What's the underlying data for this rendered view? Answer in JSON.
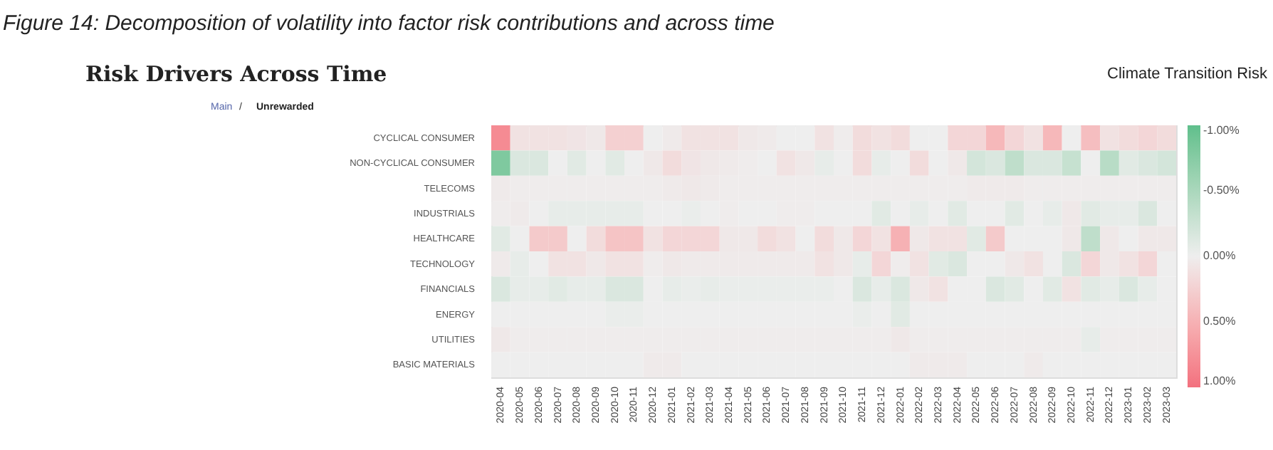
{
  "chart_data": {
    "type": "heatmap",
    "title": "Figure 14: Decomposition of volatility into factor risk contributions and across time",
    "subtitle": "Risk Drivers Across Time",
    "annotations": [
      "Main",
      "/",
      "Unrewarded",
      "Climate Transition Risk"
    ],
    "categories": [
      "2020-04",
      "2020-05",
      "2020-06",
      "2020-07",
      "2020-08",
      "2020-09",
      "2020-10",
      "2020-11",
      "2020-12",
      "2021-01",
      "2021-02",
      "2021-03",
      "2021-04",
      "2021-05",
      "2021-06",
      "2021-07",
      "2021-08",
      "2021-09",
      "2021-10",
      "2021-11",
      "2021-12",
      "2022-01",
      "2022-02",
      "2022-03",
      "2022-04",
      "2022-05",
      "2022-06",
      "2022-07",
      "2022-08",
      "2022-09",
      "2022-10",
      "2022-11",
      "2022-12",
      "2023-01",
      "2023-02",
      "2023-03"
    ],
    "y_categories": [
      "CYCLICAL CONSUMER",
      "NON-CYCLICAL CONSUMER",
      "TELECOMS",
      "INDUSTRIALS",
      "HEALTHCARE",
      "TECHNOLOGY",
      "FINANCIALS",
      "ENERGY",
      "UTILITIES",
      "BASIC MATERIALS"
    ],
    "cells": [
      [
        0.8,
        0.1,
        0.1,
        0.1,
        0.08,
        0.05,
        0.25,
        0.25,
        0,
        0.03,
        0.1,
        0.1,
        0.1,
        0.05,
        0.03,
        0,
        0,
        0.1,
        0.02,
        0.15,
        0.1,
        0.15,
        0,
        0,
        0.2,
        0.2,
        0.45,
        0.2,
        0.1,
        0.45,
        0,
        0.4,
        0.1,
        0.15,
        0.2,
        0.15
      ],
      [
        -0.8,
        -0.15,
        -0.15,
        0,
        -0.1,
        0,
        -0.1,
        0,
        0.05,
        0.15,
        0.08,
        0.05,
        0.03,
        0.02,
        0,
        0.1,
        0.05,
        -0.05,
        0,
        0.15,
        -0.05,
        0,
        0.15,
        0,
        0.05,
        -0.2,
        -0.15,
        -0.35,
        -0.15,
        -0.15,
        -0.3,
        0,
        -0.4,
        -0.1,
        -0.15,
        -0.2
      ],
      [
        0.03,
        0.02,
        0.02,
        0.02,
        0.02,
        0.02,
        0.02,
        0.02,
        0.02,
        0.03,
        0.05,
        0.03,
        0.02,
        0.02,
        0.02,
        0.02,
        0.02,
        0.02,
        0.02,
        0.02,
        0.02,
        0.02,
        0.02,
        0.02,
        0.02,
        0.03,
        0.03,
        0.03,
        0.02,
        0.02,
        0.02,
        0.02,
        0.02,
        0.02,
        0.02,
        0.02
      ],
      [
        0.02,
        0.03,
        0,
        -0.05,
        -0.05,
        -0.05,
        -0.05,
        -0.05,
        0,
        0,
        -0.03,
        0,
        0.02,
        0,
        0,
        0.02,
        0.02,
        0,
        0,
        0,
        -0.1,
        0,
        -0.05,
        0,
        -0.1,
        0,
        0,
        -0.1,
        0,
        -0.05,
        0.05,
        -0.1,
        -0.05,
        -0.05,
        -0.15,
        0
      ],
      [
        -0.1,
        0,
        0.3,
        0.3,
        0,
        0.15,
        0.35,
        0.35,
        0.1,
        0.2,
        0.2,
        0.2,
        0.05,
        0.05,
        0.15,
        0.1,
        0,
        0.15,
        0.05,
        0.2,
        0.1,
        0.5,
        0.05,
        0.1,
        0.1,
        -0.1,
        0.3,
        0,
        0,
        0,
        0.05,
        -0.35,
        0.05,
        0,
        0.05,
        0.05
      ],
      [
        0.03,
        -0.05,
        0,
        0.1,
        0.1,
        0.05,
        0.1,
        0.1,
        0.02,
        0.05,
        0.03,
        0.03,
        0.03,
        0.03,
        0.03,
        0.03,
        0.03,
        0.1,
        0.05,
        -0.05,
        0.2,
        0.02,
        0.1,
        -0.1,
        -0.15,
        0,
        0,
        0.05,
        0.1,
        0,
        -0.15,
        0.2,
        0.05,
        0.1,
        0.2,
        0
      ],
      [
        -0.15,
        -0.05,
        -0.05,
        -0.1,
        -0.05,
        -0.05,
        -0.15,
        -0.15,
        0,
        -0.05,
        -0.03,
        -0.05,
        -0.03,
        -0.03,
        -0.03,
        -0.03,
        -0.03,
        -0.03,
        0,
        -0.15,
        -0.05,
        -0.15,
        0.05,
        0.1,
        0,
        0,
        -0.15,
        -0.1,
        0,
        -0.1,
        0.1,
        -0.1,
        -0.05,
        -0.15,
        -0.05,
        0
      ],
      [
        0,
        0,
        0,
        0,
        0,
        0,
        -0.03,
        -0.03,
        0,
        0,
        0,
        0,
        0,
        0,
        0,
        0,
        0,
        0,
        0,
        -0.03,
        0,
        -0.1,
        0,
        0,
        0,
        0,
        0,
        0,
        0,
        0,
        0,
        0,
        0,
        0,
        0,
        0
      ],
      [
        0.05,
        0.02,
        0.02,
        0.02,
        0.02,
        0.02,
        0.02,
        0.02,
        0.02,
        0.02,
        0.02,
        0.02,
        0.02,
        0.02,
        0.02,
        0.02,
        0.02,
        0.02,
        0.02,
        0.02,
        0.02,
        0.05,
        0.02,
        0.02,
        0.02,
        0.02,
        0.02,
        0.02,
        0.02,
        0.02,
        0.02,
        -0.05,
        0.02,
        0.02,
        0.02,
        0.02
      ],
      [
        0,
        0,
        0,
        0,
        0,
        0,
        0,
        0,
        0.03,
        0.03,
        0,
        0,
        0,
        0,
        0,
        0,
        0,
        0,
        0,
        0,
        0,
        0,
        0.03,
        0.03,
        0.03,
        0,
        0,
        0,
        0.03,
        0,
        0,
        0,
        0,
        0,
        0,
        0
      ]
    ],
    "clim": [
      -1.0,
      1.0
    ],
    "cticks": [
      {
        "value": -1.0,
        "label": "-1.00%"
      },
      {
        "value": -0.5,
        "label": "-0.50%"
      },
      {
        "value": 0.0,
        "label": "0.00%"
      },
      {
        "value": 0.5,
        "label": "0.50%"
      },
      {
        "value": 1.0,
        "label": "1.00%"
      }
    ],
    "colors": [
      "#5fbf8c",
      "#eeeeee",
      "#f2707e"
    ]
  }
}
